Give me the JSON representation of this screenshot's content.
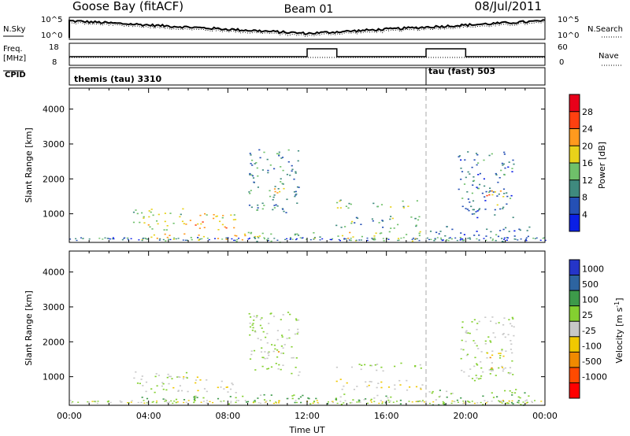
{
  "header": {
    "station": "Goose Bay (fitACF)",
    "beam": "Beam 01",
    "date": "08/Jul/2011"
  },
  "nsky_panel": {
    "left_label": "N.Sky",
    "right_label": "N.Search",
    "right_line_style": "dotted",
    "left_ticks": [
      "10^5",
      "10^0"
    ],
    "right_ticks": [
      "10^5",
      "10^0"
    ]
  },
  "freq_panel": {
    "left_label_line1": "Freq.",
    "left_label_line2": "[MHz]",
    "left_ticks": [
      "18",
      "8"
    ],
    "right_label": "Nave",
    "right_line_style": "dotted",
    "right_ticks": [
      "60",
      "0"
    ],
    "step_intervals_hours": [
      [
        12.0,
        13.5
      ],
      [
        18.0,
        20.0
      ]
    ]
  },
  "cpid_panel": {
    "label": "CPID",
    "segments": [
      {
        "label": "themis (tau) 3310",
        "start_hour": 0.0,
        "end_hour": 18.0
      },
      {
        "label": "tau (fast) 503",
        "start_hour": 18.0,
        "end_hour": 24.0
      }
    ]
  },
  "x_axis": {
    "title": "Time UT",
    "ticks": [
      "00:00",
      "04:00",
      "08:00",
      "12:00",
      "16:00",
      "20:00",
      "00:00"
    ],
    "range_hours": [
      0,
      24
    ]
  },
  "range_axis": {
    "title": "Slant Range [km]",
    "ticks": [
      "1000",
      "2000",
      "3000",
      "4000"
    ],
    "range_km": [
      180,
      4600
    ]
  },
  "power_colorbar": {
    "title": "Power [dB]",
    "ticks": [
      "4",
      "8",
      "12",
      "16",
      "20",
      "24",
      "28"
    ],
    "colors": [
      "#0a1fe6",
      "#2550b5",
      "#3f8a7e",
      "#6fc06a",
      "#e8d21a",
      "#ff9a1e",
      "#ff4010",
      "#e8001a"
    ]
  },
  "velocity_colorbar": {
    "title": "Velocity [m s",
    "title_sup": "-1",
    "title_end": "]",
    "ticks": [
      "1000",
      "500",
      "100",
      "25",
      "-25",
      "-100",
      "-500",
      "-1000"
    ],
    "colors": [
      "#2535c8",
      "#2d64a0",
      "#3d9a4a",
      "#84d030",
      "#c8c8c8",
      "#f0c800",
      "#f08a00",
      "#ff4a00",
      "#ff0000"
    ]
  },
  "chart_data": {
    "type": "heatmap",
    "x_unit": "hours UT",
    "y_unit": "km",
    "mode_change_hour": 18.0,
    "scatter_regions": [
      {
        "t": [
          3.2,
          6.0
        ],
        "r": [
          540,
          1160
        ],
        "power_db": 16,
        "velocity": 25
      },
      {
        "t": [
          5.2,
          8.4
        ],
        "r": [
          560,
          1020
        ],
        "power_db": 20,
        "velocity": -25
      },
      {
        "t": [
          3.5,
          9.0
        ],
        "r": [
          220,
          460
        ],
        "power_db": 20,
        "velocity": 100
      },
      {
        "t": [
          9.0,
          11.6
        ],
        "r": [
          1050,
          2900
        ],
        "power_db": 10,
        "velocity": 25
      },
      {
        "t": [
          10.0,
          11.0
        ],
        "r": [
          1600,
          1850
        ],
        "power_db": 18,
        "velocity": -100
      },
      {
        "t": [
          9.0,
          13.0
        ],
        "r": [
          200,
          500
        ],
        "power_db": 14,
        "velocity": 100
      },
      {
        "t": [
          13.4,
          17.8
        ],
        "r": [
          220,
          520
        ],
        "power_db": 16,
        "velocity": 100
      },
      {
        "t": [
          13.4,
          17.8
        ],
        "r": [
          600,
          950
        ],
        "power_db": 12,
        "velocity": -25
      },
      {
        "t": [
          13.4,
          17.8
        ],
        "r": [
          1180,
          1420
        ],
        "power_db": 14,
        "velocity": 25
      },
      {
        "t": [
          18.0,
          23.2
        ],
        "r": [
          200,
          650
        ],
        "power_db": 8,
        "velocity": 100
      },
      {
        "t": [
          19.6,
          22.4
        ],
        "r": [
          900,
          2800
        ],
        "power_db": 8,
        "velocity": 25
      },
      {
        "t": [
          21.0,
          22.0
        ],
        "r": [
          1200,
          1700
        ],
        "power_db": 22,
        "velocity": -100
      }
    ]
  }
}
